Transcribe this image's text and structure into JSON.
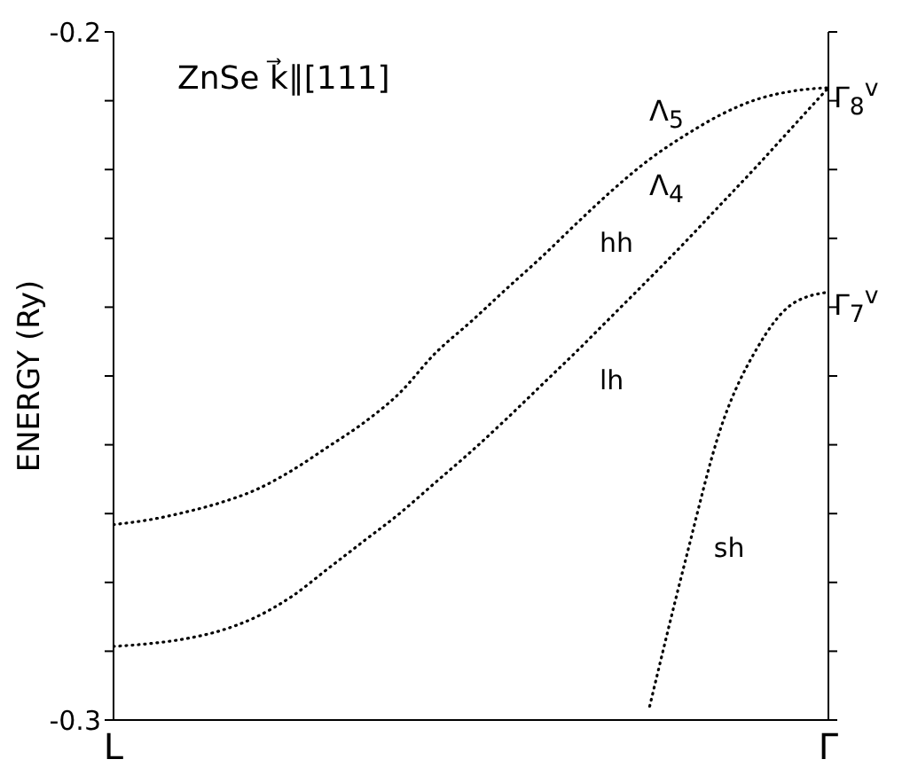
{
  "chart_data": {
    "type": "line",
    "title": "ZnSe k⃗∥[111]",
    "ylabel": "ENERGY (Ry)",
    "categories": [
      "L",
      null,
      null,
      null,
      null,
      null,
      null,
      null,
      null,
      null,
      null,
      null,
      null,
      null,
      null,
      null,
      null,
      null,
      null,
      null,
      "Γ"
    ],
    "ylim": [
      -0.3,
      -0.2
    ],
    "yticks": [
      -0.2,
      {
        "value": -0.21,
        "label": null
      },
      {
        "value": -0.22,
        "label": null
      },
      {
        "value": -0.23,
        "label": null
      },
      {
        "value": -0.24,
        "label": null
      },
      {
        "value": -0.25,
        "label": null
      },
      {
        "value": -0.26,
        "label": null
      },
      {
        "value": -0.27,
        "label": null
      },
      {
        "value": -0.28,
        "label": null
      },
      {
        "value": -0.29,
        "label": null
      },
      -0.3
    ],
    "grid": false,
    "legend": false,
    "line_style": "dotted",
    "marker": "none",
    "series": [
      {
        "name": "hh",
        "color": "#000000",
        "values": [
          -0.2716,
          -0.2709,
          -0.2698,
          -0.2684,
          -0.2665,
          -0.2637,
          -0.2603,
          -0.2568,
          -0.2525,
          -0.2467,
          -0.2421,
          -0.2373,
          -0.2326,
          -0.2276,
          -0.2228,
          -0.2185,
          -0.215,
          -0.212,
          -0.2098,
          -0.2086,
          -0.2081
        ]
      },
      {
        "name": "lh",
        "color": "#000000",
        "values": [
          -0.2893,
          -0.2889,
          -0.2882,
          -0.287,
          -0.285,
          -0.282,
          -0.278,
          -0.274,
          -0.27,
          -0.2655,
          -0.261,
          -0.2562,
          -0.2512,
          -0.2462,
          -0.241,
          -0.2358,
          -0.2305,
          -0.225,
          -0.2195,
          -0.2138,
          -0.2081
        ]
      },
      {
        "name": "sh",
        "color": "#000000",
        "values": [
          null,
          null,
          null,
          null,
          null,
          null,
          null,
          null,
          null,
          null,
          null,
          null,
          null,
          null,
          null,
          -0.298,
          -0.2768,
          -0.2574,
          -0.246,
          -0.2395,
          -0.2378
        ]
      }
    ],
    "annotations": [
      "Γ$_{8}$$^{v}$",
      "Γ$_{7}$$^{v}$",
      "Λ$_{5}$",
      "Λ$_{4}$"
    ]
  }
}
